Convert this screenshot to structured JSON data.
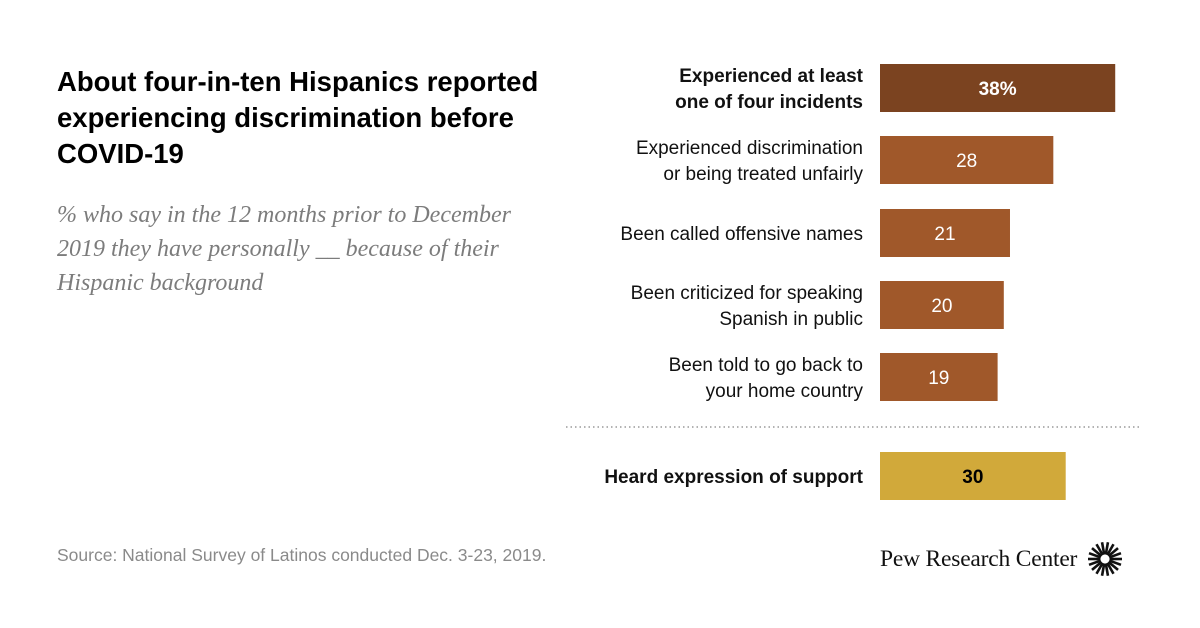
{
  "header": {
    "title": "About four-in-ten Hispanics reported experiencing discrimination before COVID-19",
    "subtitle": "% who say in the 12 months prior to December 2019 they have personally __ because of their Hispanic background"
  },
  "chart_data": {
    "type": "bar",
    "orientation": "horizontal",
    "title": "About four-in-ten Hispanics reported experiencing discrimination before COVID-19",
    "subtitle": "% who say in the 12 months prior to December 2019 they have personally __ because of their Hispanic background",
    "xlabel": "",
    "ylabel": "",
    "xlim": [
      0,
      100
    ],
    "grid": false,
    "bars": [
      {
        "label_lines": [
          "Experienced at least",
          "one of four incidents"
        ],
        "value": 38,
        "display": "38%",
        "bold": true,
        "color": "#7b4320"
      },
      {
        "label_lines": [
          "Experienced discrimination",
          "or being treated unfairly"
        ],
        "value": 28,
        "display": "28",
        "bold": false,
        "color": "#a0582a"
      },
      {
        "label_lines": [
          "Been called offensive names"
        ],
        "value": 21,
        "display": "21",
        "bold": false,
        "color": "#a0582a"
      },
      {
        "label_lines": [
          "Been criticized  for speaking",
          "Spanish in public"
        ],
        "value": 20,
        "display": "20",
        "bold": false,
        "color": "#a0582a"
      },
      {
        "label_lines": [
          "Been told to go back to",
          "your home country"
        ],
        "value": 19,
        "display": "19",
        "bold": false,
        "color": "#a0582a"
      },
      {
        "label_lines": [
          "Heard expression of support"
        ],
        "value": 30,
        "display": "30",
        "bold": true,
        "color": "#d1a93a",
        "value_text_color": "#000000"
      }
    ]
  },
  "footer": {
    "source": "Source: National Survey of Latinos conducted Dec. 3-23, 2019.",
    "logo_text": "Pew Research Center"
  },
  "colors": {
    "dark_brown": "#7b4320",
    "brown": "#a0582a",
    "gold": "#d1a93a",
    "subtitle_gray": "#7c7c7c",
    "source_gray": "#8a8a8a"
  }
}
